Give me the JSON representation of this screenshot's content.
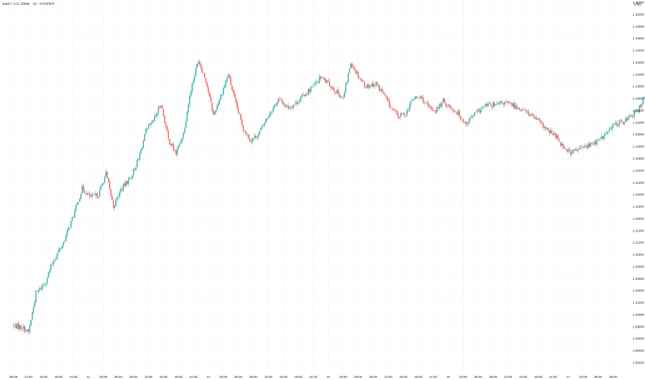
{
  "title": "Euro / U.S. Dollar · 15 · FXOPEN",
  "unit": "USD",
  "colors": {
    "up": "#26a69a",
    "down": "#ef5350",
    "grid": "#f0f3fa",
    "text": "#131722",
    "bg": "#ffffff"
  },
  "chart_data": {
    "type": "candlestick",
    "title": "Euro / U.S. Dollar · 15 · FXOPEN",
    "ylabel": "USD",
    "ylim": [
      1.0906,
      1.1524
    ],
    "yticks": [
      "1.15200",
      "1.15000",
      "1.14800",
      "1.14600",
      "1.14400",
      "1.14200",
      "1.14000",
      "1.13800",
      "1.13600",
      "1.13400",
      "1.13200",
      "1.13000",
      "1.12800",
      "1.12600",
      "1.12400",
      "1.12200",
      "1.12000",
      "1.11800",
      "1.11600",
      "1.11400",
      "1.11200",
      "1.11000",
      "1.10800",
      "1.10600",
      "1.10400",
      "1.10200",
      "1.10000",
      "1.09800",
      "1.09600",
      "1.09400",
      "1.09200"
    ],
    "xticks": [
      "09:00",
      "12:00",
      "15:00",
      "18:00",
      "21:00",
      "11",
      "03:00",
      "06:00",
      "09:00",
      "12:00",
      "15:00",
      "18:00",
      "21:00",
      "14",
      "03:00",
      "06:00",
      "09:00",
      "12:00",
      "15:00",
      "18:00",
      "21:00",
      "15",
      "03:00",
      "06:00",
      "09:00",
      "12:00",
      "15:00",
      "18:00",
      "21:00",
      "16",
      "03:00",
      "06:00",
      "09:00",
      "12:00",
      "15:00",
      "18:00",
      "21:00",
      "17",
      "03:00",
      "06:00",
      "09:00",
      "12:00"
    ],
    "x_start_label": "09:00",
    "bars_per_tick": 12,
    "bar_interval": "15m",
    "anchors": [
      [
        0,
        1.0982
      ],
      [
        8,
        1.0978
      ],
      [
        12,
        1.097
      ],
      [
        18,
        1.1035
      ],
      [
        25,
        1.1052
      ],
      [
        32,
        1.109
      ],
      [
        40,
        1.112
      ],
      [
        48,
        1.1165
      ],
      [
        55,
        1.121
      ],
      [
        62,
        1.1195
      ],
      [
        68,
        1.12
      ],
      [
        74,
        1.1235
      ],
      [
        80,
        1.118
      ],
      [
        86,
        1.1208
      ],
      [
        94,
        1.123
      ],
      [
        100,
        1.1258
      ],
      [
        106,
        1.1305
      ],
      [
        112,
        1.1322
      ],
      [
        118,
        1.1352
      ],
      [
        124,
        1.1292
      ],
      [
        130,
        1.1268
      ],
      [
        136,
        1.1302
      ],
      [
        142,
        1.1375
      ],
      [
        148,
        1.1425
      ],
      [
        154,
        1.139
      ],
      [
        160,
        1.1332
      ],
      [
        166,
        1.1365
      ],
      [
        172,
        1.14
      ],
      [
        178,
        1.135
      ],
      [
        184,
        1.131
      ],
      [
        190,
        1.129
      ],
      [
        196,
        1.13
      ],
      [
        204,
        1.1332
      ],
      [
        212,
        1.1358
      ],
      [
        220,
        1.1345
      ],
      [
        226,
        1.1352
      ],
      [
        232,
        1.1365
      ],
      [
        240,
        1.138
      ],
      [
        246,
        1.1395
      ],
      [
        252,
        1.1385
      ],
      [
        258,
        1.1372
      ],
      [
        264,
        1.136
      ],
      [
        270,
        1.142
      ],
      [
        276,
        1.1398
      ],
      [
        282,
        1.138
      ],
      [
        290,
        1.1385
      ],
      [
        296,
        1.1368
      ],
      [
        302,
        1.1345
      ],
      [
        308,
        1.133
      ],
      [
        314,
        1.1335
      ],
      [
        320,
        1.136
      ],
      [
        326,
        1.1362
      ],
      [
        332,
        1.1345
      ],
      [
        338,
        1.134
      ],
      [
        344,
        1.1355
      ],
      [
        350,
        1.1345
      ],
      [
        356,
        1.1335
      ],
      [
        362,
        1.1318
      ],
      [
        368,
        1.1332
      ],
      [
        374,
        1.1342
      ],
      [
        380,
        1.135
      ],
      [
        386,
        1.1348
      ],
      [
        392,
        1.1353
      ],
      [
        398,
        1.135
      ],
      [
        404,
        1.1345
      ],
      [
        410,
        1.1338
      ],
      [
        416,
        1.133
      ],
      [
        422,
        1.1318
      ],
      [
        428,
        1.1305
      ],
      [
        434,
        1.1298
      ],
      [
        440,
        1.128
      ],
      [
        446,
        1.127
      ],
      [
        452,
        1.1275
      ],
      [
        458,
        1.128
      ],
      [
        464,
        1.1285
      ],
      [
        470,
        1.1292
      ],
      [
        476,
        1.1305
      ],
      [
        482,
        1.1318
      ],
      [
        488,
        1.1322
      ],
      [
        494,
        1.133
      ],
      [
        500,
        1.134
      ],
      [
        506,
        1.137
      ],
      [
        512,
        1.1378
      ],
      [
        518,
        1.1368
      ],
      [
        524,
        1.1362
      ],
      [
        530,
        1.136
      ],
      [
        536,
        1.1355
      ],
      [
        542,
        1.1362
      ],
      [
        548,
        1.1365
      ],
      [
        554,
        1.1372
      ],
      [
        560,
        1.1378
      ],
      [
        566,
        1.137
      ],
      [
        572,
        1.1382
      ],
      [
        578,
        1.139
      ],
      [
        584,
        1.1385
      ],
      [
        590,
        1.1395
      ],
      [
        596,
        1.139
      ],
      [
        602,
        1.1395
      ],
      [
        608,
        1.1375
      ],
      [
        614,
        1.1355
      ],
      [
        620,
        1.1372
      ],
      [
        626,
        1.1368
      ],
      [
        632,
        1.1365
      ],
      [
        638,
        1.1355
      ],
      [
        644,
        1.1362
      ],
      [
        650,
        1.1372
      ]
    ]
  }
}
